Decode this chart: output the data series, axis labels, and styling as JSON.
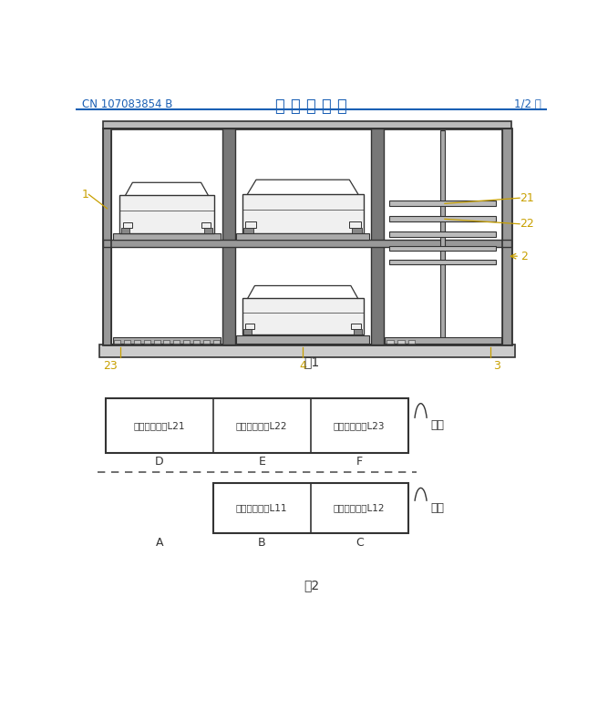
{
  "bg_color": "#ffffff",
  "header_left": "CN 107083854 B",
  "header_center": "说 明 书 附 图",
  "header_right": "1/2 页",
  "header_color": "#1a5fb4",
  "fig1_label": "图1",
  "fig2_label": "图2",
  "annotation_color": "#c8a000",
  "labels_fig2_top": [
    "可移动停车位L21",
    "可移动停车位L22",
    "可移动停车位L23"
  ],
  "labels_fig2_bot": [
    "可移动停车位L11",
    "可移动停车位L12"
  ],
  "labels_col_top": [
    "D",
    "E",
    "F"
  ],
  "labels_col_bot": [
    "A",
    "B",
    "C"
  ],
  "label_er": "二层",
  "label_yi": "一层",
  "line_color": "#333333",
  "dashed_color": "#555555"
}
